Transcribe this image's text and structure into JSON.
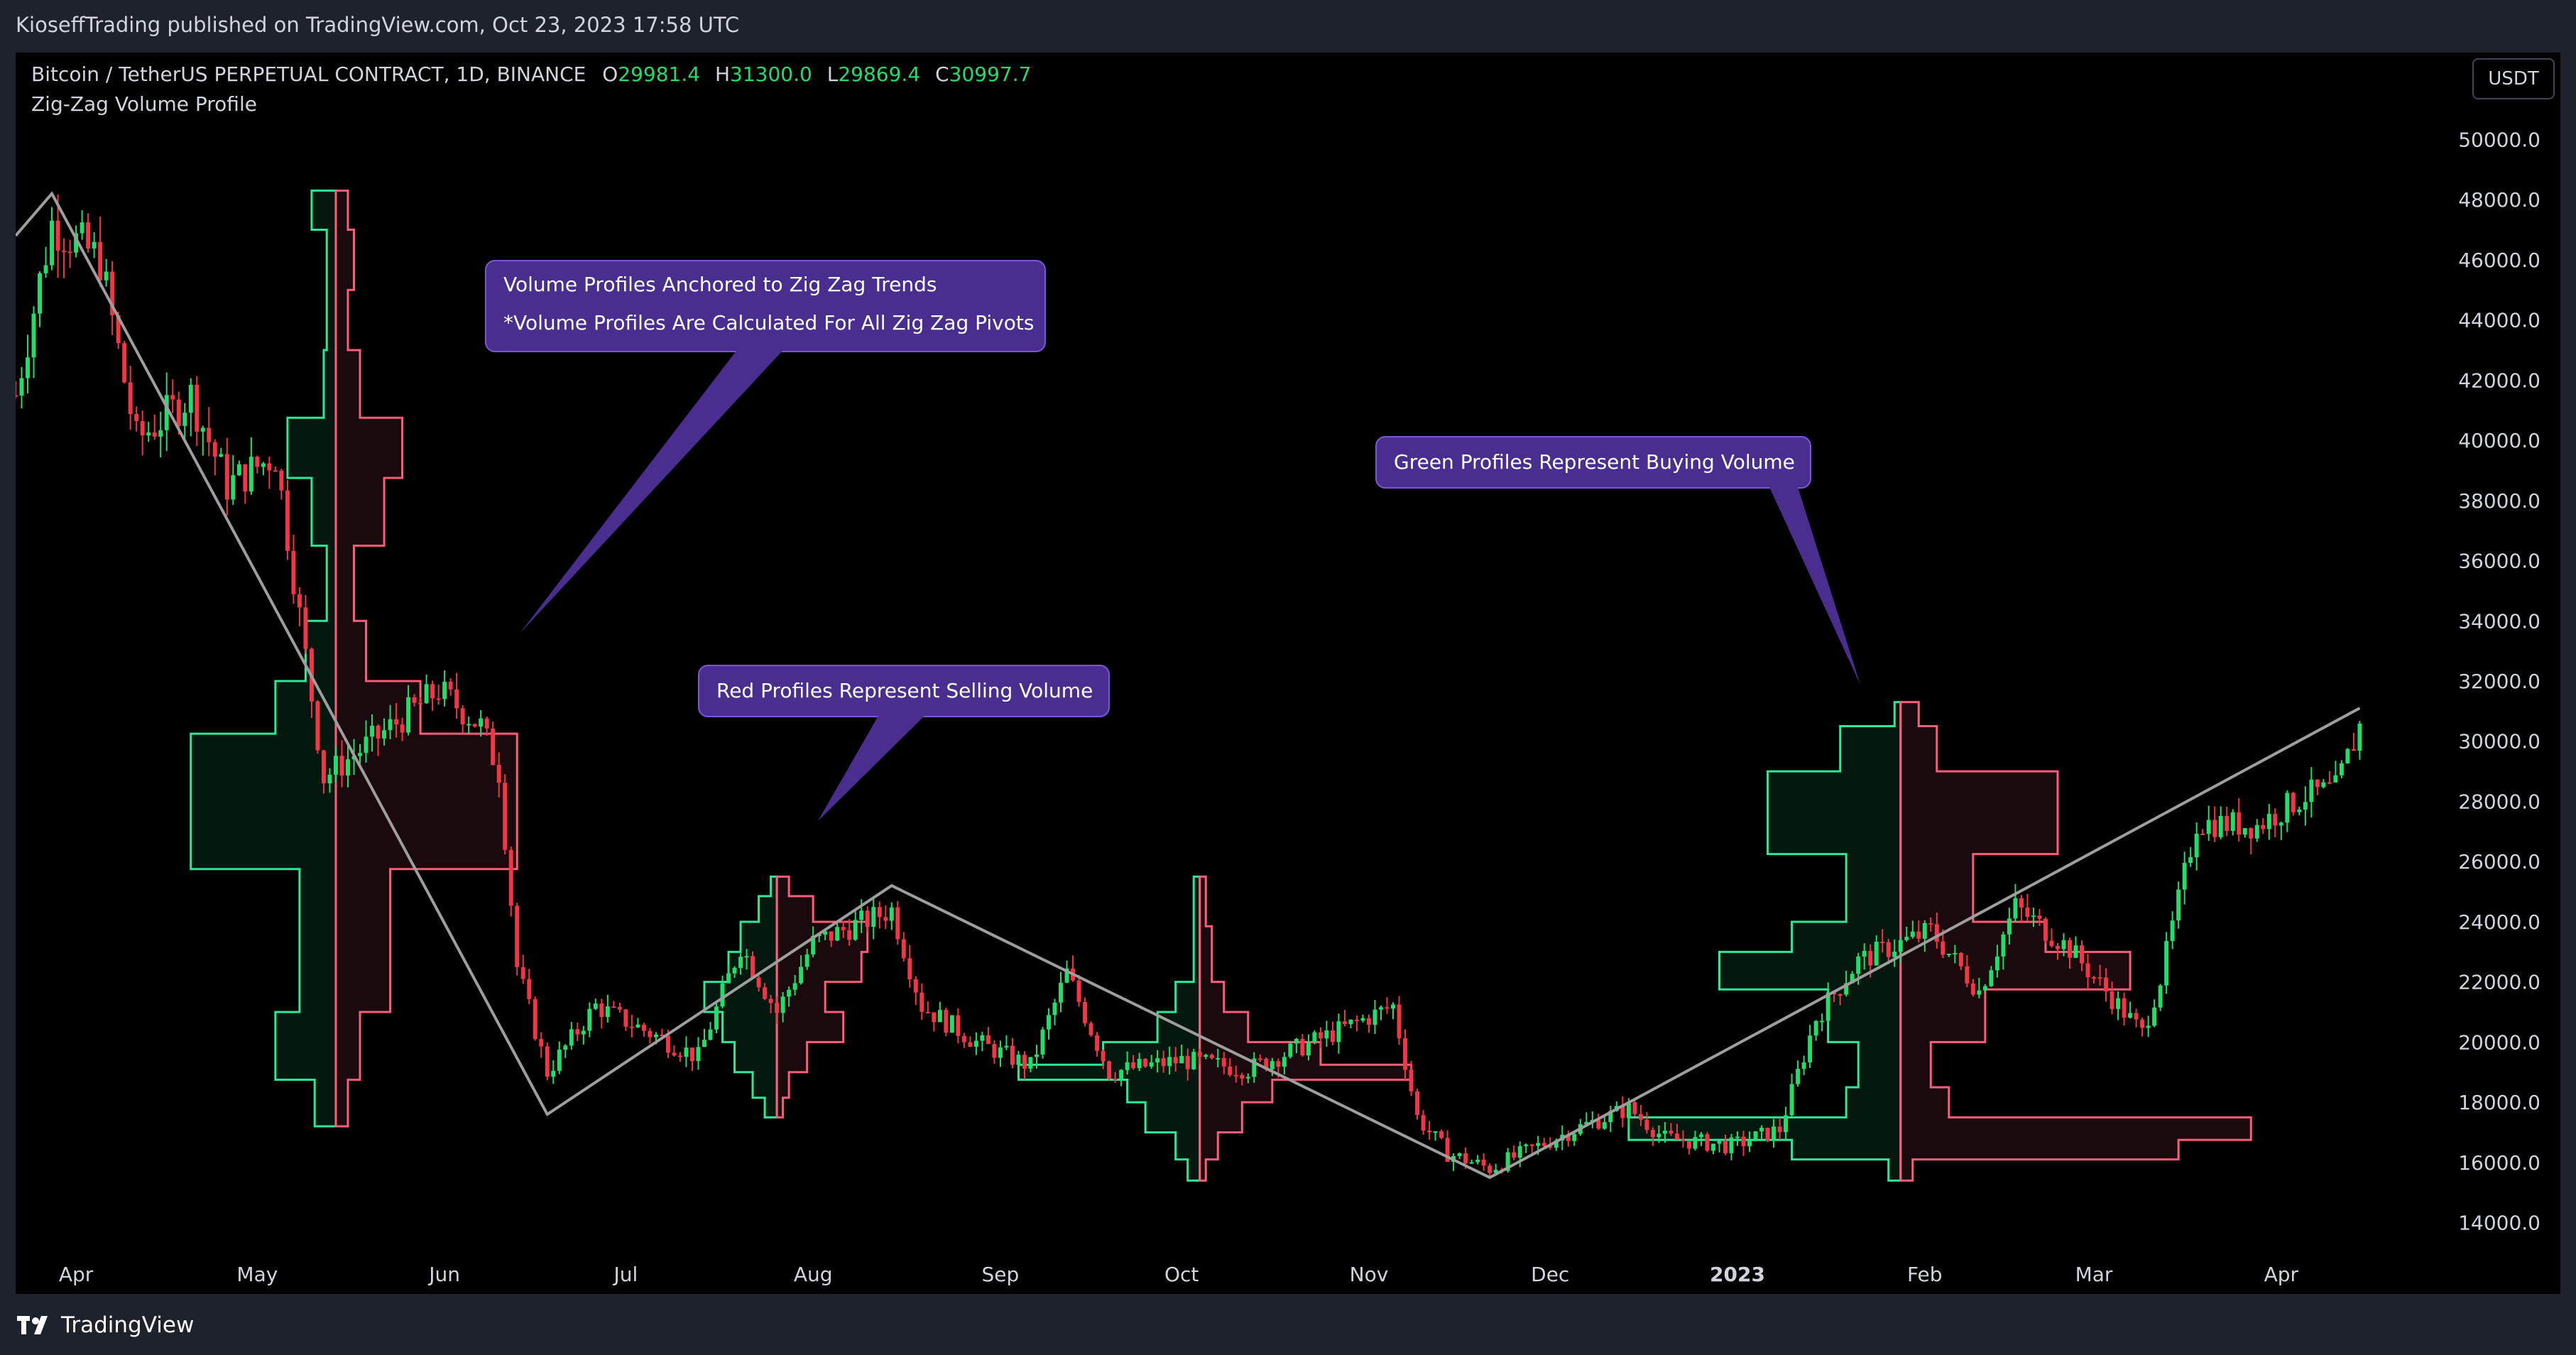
{
  "header": {
    "published": "KioseffTrading published on TradingView.com, Oct 23, 2023 17:58 UTC"
  },
  "legend": {
    "symbol": "Bitcoin / TetherUS PERPETUAL CONTRACT, 1D, BINANCE",
    "o_label": "O",
    "o_value": "29981.4",
    "h_label": "H",
    "h_value": "31300.0",
    "l_label": "L",
    "l_value": "29869.4",
    "c_label": "C",
    "c_value": "30997.7",
    "indicator": "Zig-Zag Volume Profile"
  },
  "currency_button": "USDT",
  "annotations": {
    "profiles_anchored_line1": "Volume Profiles Anchored to Zig Zag Trends",
    "profiles_anchored_line2": "*Volume Profiles Are Calculated For All Zig Zag Pivots",
    "red_profiles": "Red Profiles Represent Selling Volume",
    "green_profiles": "Green Profiles Represent Buying Volume"
  },
  "footer": {
    "brand": "TradingView"
  },
  "colors": {
    "background": "#000000",
    "frame": "#1e222d",
    "up": "#22dd6a",
    "down": "#f23645",
    "buy_profile": "#2ee89a",
    "sell_profile": "#ff5c7c",
    "zigzag": "#9e9e9e",
    "callout_bg": "#4a2e8f",
    "callout_border": "#7b57d6"
  },
  "chart_data": {
    "type": "candlestick",
    "symbol": "Bitcoin / TetherUS PERPETUAL CONTRACT, 1D, BINANCE",
    "ylim": [
      13000,
      51000
    ],
    "y_ticks": [
      {
        "value": 14000,
        "label": "14000.0"
      },
      {
        "value": 16000,
        "label": "16000.0"
      },
      {
        "value": 18000,
        "label": "18000.0"
      },
      {
        "value": 20000,
        "label": "20000.0"
      },
      {
        "value": 22000,
        "label": "22000.0"
      },
      {
        "value": 24000,
        "label": "24000.0"
      },
      {
        "value": 26000,
        "label": "26000.0"
      },
      {
        "value": 28000,
        "label": "28000.0"
      },
      {
        "value": 30000,
        "label": "30000.0"
      },
      {
        "value": 32000,
        "label": "32000.0"
      },
      {
        "value": 34000,
        "label": "34000.0"
      },
      {
        "value": 36000,
        "label": "36000.0"
      },
      {
        "value": 38000,
        "label": "38000.0"
      },
      {
        "value": 40000,
        "label": "40000.0"
      },
      {
        "value": 42000,
        "label": "42000.0"
      },
      {
        "value": 44000,
        "label": "44000.0"
      },
      {
        "value": 46000,
        "label": "46000.0"
      },
      {
        "value": 48000,
        "label": "48000.0"
      },
      {
        "value": 50000,
        "label": "50000.0"
      }
    ],
    "x_ticks": [
      {
        "date": "2022-04-01",
        "label": "Apr"
      },
      {
        "date": "2022-05-01",
        "label": "May"
      },
      {
        "date": "2022-06-01",
        "label": "Jun"
      },
      {
        "date": "2022-07-01",
        "label": "Jul"
      },
      {
        "date": "2022-08-01",
        "label": "Aug"
      },
      {
        "date": "2022-09-01",
        "label": "Sep"
      },
      {
        "date": "2022-10-01",
        "label": "Oct"
      },
      {
        "date": "2022-11-01",
        "label": "Nov"
      },
      {
        "date": "2022-12-01",
        "label": "Dec"
      },
      {
        "date": "2023-01-01",
        "label": "2023",
        "bold": true
      },
      {
        "date": "2023-02-01",
        "label": "Feb"
      },
      {
        "date": "2023-03-01",
        "label": "Mar"
      },
      {
        "date": "2023-04-01",
        "label": "Apr"
      }
    ],
    "x_range": [
      "2022-03-22",
      "2023-04-23"
    ],
    "zigzag": [
      {
        "date": "2022-03-22",
        "price": 46800
      },
      {
        "date": "2022-03-28",
        "price": 48200
      },
      {
        "date": "2022-06-18",
        "price": 17600
      },
      {
        "date": "2022-08-14",
        "price": 25200
      },
      {
        "date": "2022-11-21",
        "price": 15500
      },
      {
        "date": "2023-04-14",
        "price": 31100
      }
    ],
    "price_path": [
      {
        "date": "2022-03-22",
        "price": 41500
      },
      {
        "date": "2022-03-28",
        "price": 47200
      },
      {
        "date": "2022-04-05",
        "price": 46000
      },
      {
        "date": "2022-04-11",
        "price": 40000
      },
      {
        "date": "2022-04-20",
        "price": 41500
      },
      {
        "date": "2022-04-26",
        "price": 38500
      },
      {
        "date": "2022-05-04",
        "price": 39500
      },
      {
        "date": "2022-05-07",
        "price": 35500
      },
      {
        "date": "2022-05-12",
        "price": 28800
      },
      {
        "date": "2022-05-20",
        "price": 30000
      },
      {
        "date": "2022-05-31",
        "price": 31700
      },
      {
        "date": "2022-06-07",
        "price": 30500
      },
      {
        "date": "2022-06-10",
        "price": 29000
      },
      {
        "date": "2022-06-13",
        "price": 22500
      },
      {
        "date": "2022-06-18",
        "price": 19000
      },
      {
        "date": "2022-06-26",
        "price": 21200
      },
      {
        "date": "2022-07-05",
        "price": 20300
      },
      {
        "date": "2022-07-13",
        "price": 19500
      },
      {
        "date": "2022-07-20",
        "price": 23200
      },
      {
        "date": "2022-07-26",
        "price": 21000
      },
      {
        "date": "2022-08-01",
        "price": 23300
      },
      {
        "date": "2022-08-14",
        "price": 24400
      },
      {
        "date": "2022-08-19",
        "price": 21200
      },
      {
        "date": "2022-08-28",
        "price": 20000
      },
      {
        "date": "2022-09-06",
        "price": 19200
      },
      {
        "date": "2022-09-12",
        "price": 22300
      },
      {
        "date": "2022-09-19",
        "price": 19000
      },
      {
        "date": "2022-10-01",
        "price": 19400
      },
      {
        "date": "2022-10-12",
        "price": 19100
      },
      {
        "date": "2022-10-25",
        "price": 20200
      },
      {
        "date": "2022-11-05",
        "price": 21200
      },
      {
        "date": "2022-11-09",
        "price": 17500
      },
      {
        "date": "2022-11-14",
        "price": 16300
      },
      {
        "date": "2022-11-21",
        "price": 15800
      },
      {
        "date": "2022-12-05",
        "price": 17100
      },
      {
        "date": "2022-12-14",
        "price": 17800
      },
      {
        "date": "2022-12-20",
        "price": 16800
      },
      {
        "date": "2022-12-31",
        "price": 16550
      },
      {
        "date": "2023-01-08",
        "price": 17100
      },
      {
        "date": "2023-01-14",
        "price": 20800
      },
      {
        "date": "2023-01-21",
        "price": 22700
      },
      {
        "date": "2023-02-02",
        "price": 23700
      },
      {
        "date": "2023-02-10",
        "price": 21700
      },
      {
        "date": "2023-02-16",
        "price": 24500
      },
      {
        "date": "2023-02-25",
        "price": 23100
      },
      {
        "date": "2023-03-09",
        "price": 20300
      },
      {
        "date": "2023-03-12",
        "price": 22100
      },
      {
        "date": "2023-03-18",
        "price": 27300
      },
      {
        "date": "2023-03-28",
        "price": 27200
      },
      {
        "date": "2023-04-05",
        "price": 28200
      },
      {
        "date": "2023-04-10",
        "price": 28400
      },
      {
        "date": "2023-04-14",
        "price": 30500
      }
    ],
    "volume_profiles": [
      {
        "name": "Zig-Zag Volume Profile",
        "anchor_date": "2022-05-14",
        "split_date": "2022-05-14",
        "buy_rows": [
          {
            "price": 17500,
            "width_days": 3.5
          },
          {
            "price": 20000,
            "width_days": 10
          },
          {
            "price": 22000,
            "width_days": 6
          },
          {
            "price": 29500,
            "width_days": 24
          },
          {
            "price": 31000,
            "width_days": 10
          },
          {
            "price": 33000,
            "width_days": 5
          },
          {
            "price": 35000,
            "width_days": 1.5
          },
          {
            "price": 38000,
            "width_days": 4
          },
          {
            "price": 39500,
            "width_days": 8
          },
          {
            "price": 42000,
            "width_days": 2
          },
          {
            "price": 44000,
            "width_days": 1.5
          },
          {
            "price": 46000,
            "width_days": 1.5
          },
          {
            "price": 48000,
            "width_days": 4
          }
        ],
        "sell_rows": [
          {
            "price": 17500,
            "width_days": 2
          },
          {
            "price": 20000,
            "width_days": 4
          },
          {
            "price": 22000,
            "width_days": 9
          },
          {
            "price": 29500,
            "width_days": 30
          },
          {
            "price": 31000,
            "width_days": 14
          },
          {
            "price": 33000,
            "width_days": 5
          },
          {
            "price": 35000,
            "width_days": 3
          },
          {
            "price": 38000,
            "width_days": 8
          },
          {
            "price": 39500,
            "width_days": 11
          },
          {
            "price": 42000,
            "width_days": 4
          },
          {
            "price": 44000,
            "width_days": 2
          },
          {
            "price": 46000,
            "width_days": 3
          },
          {
            "price": 48000,
            "width_days": 2
          }
        ]
      },
      {
        "name": "Zig-Zag Volume Profile",
        "anchor_date": "2022-07-26",
        "split_date": "2022-07-26",
        "buy_rows": [
          {
            "price": 17800,
            "width_days": 2
          },
          {
            "price": 18500,
            "width_days": 4
          },
          {
            "price": 19500,
            "width_days": 7
          },
          {
            "price": 20500,
            "width_days": 9
          },
          {
            "price": 21500,
            "width_days": 12
          },
          {
            "price": 22500,
            "width_days": 8
          },
          {
            "price": 23500,
            "width_days": 6
          },
          {
            "price": 24500,
            "width_days": 3
          },
          {
            "price": 25200,
            "width_days": 1
          }
        ],
        "sell_rows": [
          {
            "price": 17800,
            "width_days": 1
          },
          {
            "price": 18500,
            "width_days": 2
          },
          {
            "price": 19500,
            "width_days": 5
          },
          {
            "price": 20500,
            "width_days": 11
          },
          {
            "price": 21500,
            "width_days": 8
          },
          {
            "price": 22500,
            "width_days": 14
          },
          {
            "price": 23500,
            "width_days": 15
          },
          {
            "price": 24500,
            "width_days": 6
          },
          {
            "price": 25200,
            "width_days": 2
          }
        ]
      },
      {
        "name": "Zig-Zag Volume Profile",
        "anchor_date": "2022-10-04",
        "split_date": "2022-10-04",
        "buy_rows": [
          {
            "price": 15700,
            "width_days": 2
          },
          {
            "price": 16500,
            "width_days": 4
          },
          {
            "price": 17500,
            "width_days": 9
          },
          {
            "price": 18500,
            "width_days": 12
          },
          {
            "price": 19000,
            "width_days": 30
          },
          {
            "price": 19500,
            "width_days": 16
          },
          {
            "price": 20500,
            "width_days": 7
          },
          {
            "price": 21500,
            "width_days": 4
          },
          {
            "price": 22500,
            "width_days": 1
          },
          {
            "price": 25200,
            "width_days": 1
          }
        ],
        "sell_rows": [
          {
            "price": 15700,
            "width_days": 1
          },
          {
            "price": 16500,
            "width_days": 3
          },
          {
            "price": 17500,
            "width_days": 7
          },
          {
            "price": 18500,
            "width_days": 12
          },
          {
            "price": 19000,
            "width_days": 35
          },
          {
            "price": 19500,
            "width_days": 20
          },
          {
            "price": 20500,
            "width_days": 8
          },
          {
            "price": 21500,
            "width_days": 4
          },
          {
            "price": 22500,
            "width_days": 2
          },
          {
            "price": 25200,
            "width_days": 1
          }
        ]
      },
      {
        "name": "Zig-Zag Volume Profile",
        "anchor_date": "2023-01-28",
        "split_date": "2023-01-28",
        "buy_rows": [
          {
            "price": 15700,
            "width_days": 2
          },
          {
            "price": 16500,
            "width_days": 18
          },
          {
            "price": 17000,
            "width_days": 45
          },
          {
            "price": 18000,
            "width_days": 9
          },
          {
            "price": 19000,
            "width_days": 7
          },
          {
            "price": 21000,
            "width_days": 12
          },
          {
            "price": 22500,
            "width_days": 30
          },
          {
            "price": 23500,
            "width_days": 18
          },
          {
            "price": 24500,
            "width_days": 9
          },
          {
            "price": 28000,
            "width_days": 22
          },
          {
            "price": 30000,
            "width_days": 10
          },
          {
            "price": 31000,
            "width_days": 1
          }
        ],
        "sell_rows": [
          {
            "price": 15700,
            "width_days": 2
          },
          {
            "price": 16500,
            "width_days": 46
          },
          {
            "price": 17000,
            "width_days": 58
          },
          {
            "price": 18000,
            "width_days": 8
          },
          {
            "price": 19000,
            "width_days": 5
          },
          {
            "price": 21000,
            "width_days": 14
          },
          {
            "price": 22500,
            "width_days": 38
          },
          {
            "price": 23500,
            "width_days": 24
          },
          {
            "price": 24500,
            "width_days": 12
          },
          {
            "price": 28000,
            "width_days": 26
          },
          {
            "price": 30000,
            "width_days": 6
          },
          {
            "price": 31000,
            "width_days": 3
          }
        ]
      }
    ]
  }
}
